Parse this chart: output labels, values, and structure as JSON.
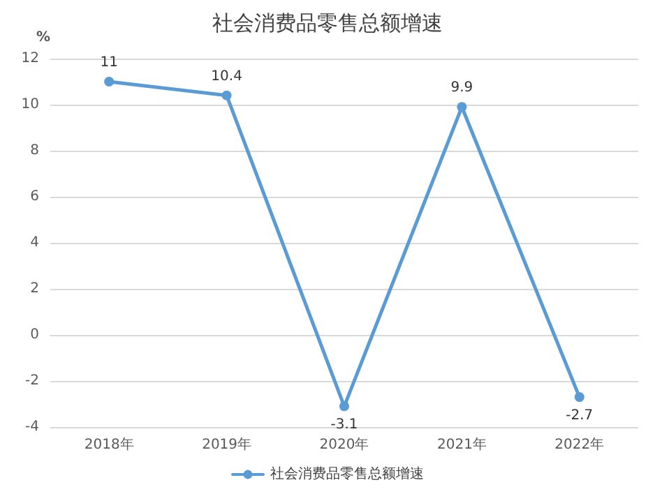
{
  "chart_data": {
    "type": "line",
    "title": "社会消费品零售总额增速",
    "ylabel": "%",
    "categories": [
      "2018年",
      "2019年",
      "2020年",
      "2021年",
      "2022年"
    ],
    "series": [
      {
        "name": "社会消费品零售总额增速",
        "color": "#5b9bd5",
        "values": [
          11,
          10.4,
          -3.1,
          9.9,
          -2.7
        ]
      }
    ],
    "ylim": [
      -4,
      12
    ],
    "yticks": [
      -4,
      -2,
      0,
      2,
      4,
      6,
      8,
      10,
      12
    ],
    "grid": "y",
    "legend": "bottom",
    "marker": "circle",
    "line_style": "solid",
    "data_labels": true
  }
}
